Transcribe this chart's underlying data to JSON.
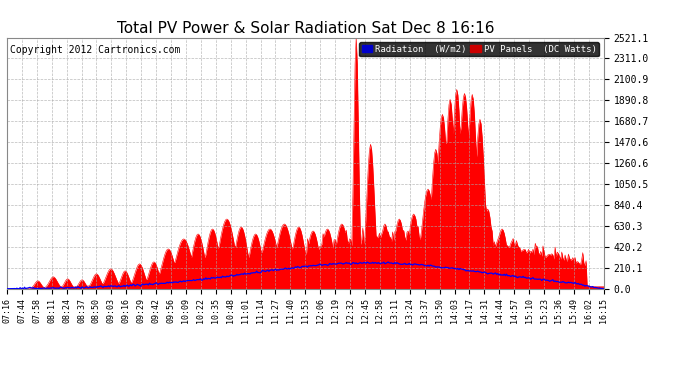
{
  "title": "Total PV Power & Solar Radiation Sat Dec 8 16:16",
  "copyright": "Copyright 2012 Cartronics.com",
  "legend_labels": [
    "Radiation  (W/m2)",
    "PV Panels  (DC Watts)"
  ],
  "legend_bg": "#000000",
  "legend_text_color": "#ffffff",
  "bg_color": "#ffffff",
  "plot_bg_color": "#ffffff",
  "grid_color": "#aaaaaa",
  "ylim": [
    0,
    2521.1
  ],
  "yticks": [
    0.0,
    210.1,
    420.2,
    630.3,
    840.4,
    1050.5,
    1260.6,
    1470.6,
    1680.7,
    1890.8,
    2100.9,
    2311.0,
    2521.1
  ],
  "xtick_labels": [
    "07:16",
    "07:44",
    "07:58",
    "08:11",
    "08:24",
    "08:37",
    "08:50",
    "09:03",
    "09:16",
    "09:29",
    "09:42",
    "09:56",
    "10:09",
    "10:22",
    "10:35",
    "10:48",
    "11:01",
    "11:14",
    "11:27",
    "11:40",
    "11:53",
    "12:06",
    "12:19",
    "12:32",
    "12:45",
    "12:58",
    "13:11",
    "13:24",
    "13:37",
    "13:50",
    "14:03",
    "14:17",
    "14:31",
    "14:44",
    "14:57",
    "15:10",
    "15:23",
    "15:36",
    "15:49",
    "16:02",
    "16:15"
  ],
  "pv_color": "#ff0000",
  "radiation_color": "#0000ff",
  "title_fontsize": 11,
  "copyright_fontsize": 7,
  "tick_fontsize": 6,
  "ytick_fontsize": 7
}
